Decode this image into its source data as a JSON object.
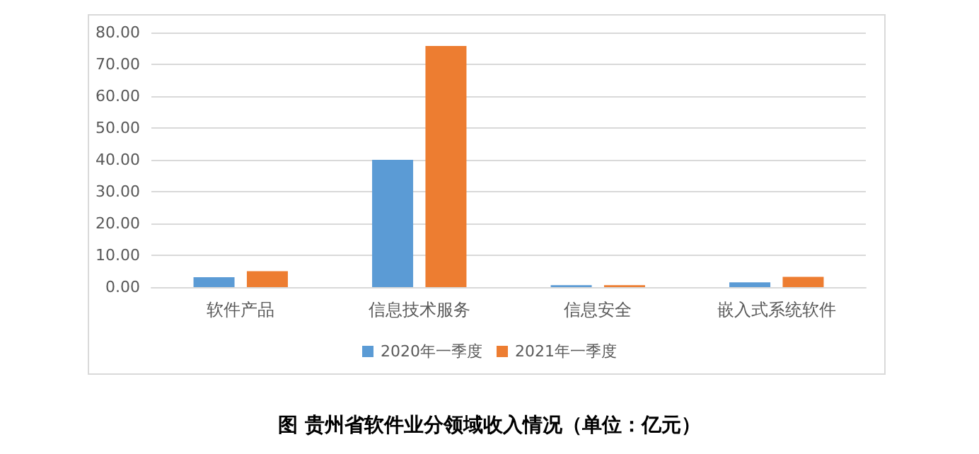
{
  "chart_data": {
    "type": "bar",
    "title": "图 贵州省软件业分领域收入情况（单位：亿元）",
    "categories": [
      "软件产品",
      "信息技术服务",
      "信息安全",
      "嵌入式系统软件"
    ],
    "series": [
      {
        "name": "2020年一季度",
        "color": "#5b9bd5",
        "values": [
          3.1,
          40.0,
          0.6,
          1.5
        ]
      },
      {
        "name": "2021年一季度",
        "color": "#ed7d31",
        "values": [
          5.0,
          75.8,
          0.6,
          3.2
        ]
      }
    ],
    "ylim": [
      0,
      80
    ],
    "yticks": [
      {
        "value": 0,
        "label": "0.00"
      },
      {
        "value": 10,
        "label": "10.00"
      },
      {
        "value": 20,
        "label": "20.00"
      },
      {
        "value": 30,
        "label": "30.00"
      },
      {
        "value": 40,
        "label": "40.00"
      },
      {
        "value": 50,
        "label": "50.00"
      },
      {
        "value": 60,
        "label": "60.00"
      },
      {
        "value": 70,
        "label": "70.00"
      },
      {
        "value": 80,
        "label": "80.00"
      }
    ],
    "grid": "y",
    "legend": "bottom"
  }
}
